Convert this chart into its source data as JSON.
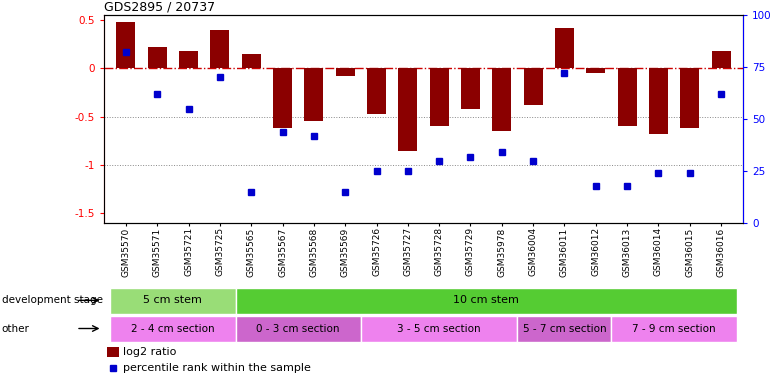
{
  "title": "GDS2895 / 20737",
  "samples": [
    "GSM35570",
    "GSM35571",
    "GSM35721",
    "GSM35725",
    "GSM35565",
    "GSM35567",
    "GSM35568",
    "GSM35569",
    "GSM35726",
    "GSM35727",
    "GSM35728",
    "GSM35729",
    "GSM35978",
    "GSM36004",
    "GSM36011",
    "GSM36012",
    "GSM36013",
    "GSM36014",
    "GSM36015",
    "GSM36016"
  ],
  "log2_ratio": [
    0.48,
    0.22,
    0.18,
    0.4,
    0.15,
    -0.62,
    -0.55,
    -0.08,
    -0.47,
    -0.85,
    -0.6,
    -0.42,
    -0.65,
    -0.38,
    0.42,
    -0.05,
    -0.6,
    -0.68,
    -0.62,
    0.18
  ],
  "percentile": [
    82,
    62,
    55,
    70,
    15,
    44,
    42,
    15,
    25,
    25,
    30,
    32,
    34,
    30,
    72,
    18,
    18,
    24,
    24,
    62
  ],
  "bar_color": "#8B0000",
  "dot_color": "#0000CD",
  "ref_line_color": "#CC0000",
  "dotted_line_color": "#888888",
  "ylim_left": [
    -1.6,
    0.55
  ],
  "ylim_right": [
    0,
    100
  ],
  "dev_stage_groups": [
    {
      "label": "5 cm stem",
      "start": 0,
      "end": 4,
      "color": "#99DD77"
    },
    {
      "label": "10 cm stem",
      "start": 4,
      "end": 20,
      "color": "#55CC33"
    }
  ],
  "other_groups": [
    {
      "label": "2 - 4 cm section",
      "start": 0,
      "end": 4,
      "color": "#EE82EE"
    },
    {
      "label": "0 - 3 cm section",
      "start": 4,
      "end": 8,
      "color": "#CC66CC"
    },
    {
      "label": "3 - 5 cm section",
      "start": 8,
      "end": 13,
      "color": "#EE82EE"
    },
    {
      "label": "5 - 7 cm section",
      "start": 13,
      "end": 16,
      "color": "#CC66CC"
    },
    {
      "label": "7 - 9 cm section",
      "start": 16,
      "end": 20,
      "color": "#EE82EE"
    }
  ],
  "background_color": "#ffffff"
}
